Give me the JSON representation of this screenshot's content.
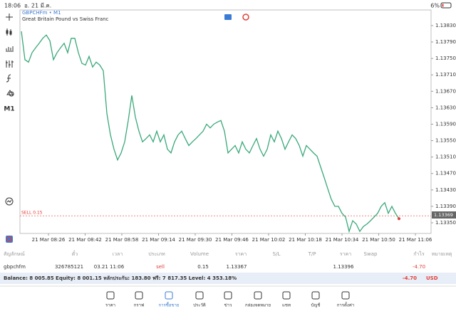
{
  "status": {
    "time": "18:06",
    "date": "อ. 21 มี.ค.",
    "battery": "6%"
  },
  "toolbar": {
    "timeframe": "M1"
  },
  "chart_data": {
    "type": "line",
    "title": "GBPCHFm • M1",
    "subtitle": "Great Britain Pound vs Swiss Franc",
    "color": "#3aa87a",
    "values": [
      1.13816,
      1.13747,
      1.13741,
      1.13764,
      1.13776,
      1.13787,
      1.13799,
      1.13807,
      1.13793,
      1.13747,
      1.13764,
      1.13776,
      1.13787,
      1.13764,
      1.13799,
      1.13799,
      1.13764,
      1.13738,
      1.13734,
      1.13755,
      1.13729,
      1.13741,
      1.13734,
      1.1372,
      1.13616,
      1.13564,
      1.13529,
      1.13503,
      1.1352,
      1.13547,
      1.13599,
      1.1366,
      1.13607,
      1.13573,
      1.13547,
      1.13555,
      1.13564,
      1.13547,
      1.13573,
      1.13547,
      1.13564,
      1.13529,
      1.1352,
      1.13547,
      1.13564,
      1.13573,
      1.13555,
      1.13538,
      1.13547,
      1.13555,
      1.13564,
      1.13573,
      1.1359,
      1.13581,
      1.1359,
      1.13595,
      1.13599,
      1.13573,
      1.1352,
      1.13529,
      1.13538,
      1.1352,
      1.13547,
      1.13529,
      1.1352,
      1.13538,
      1.13555,
      1.13529,
      1.13512,
      1.13529,
      1.13564,
      1.13547,
      1.13573,
      1.13555,
      1.13529,
      1.13547,
      1.13564,
      1.13555,
      1.13538,
      1.13512,
      1.13538,
      1.13529,
      1.1352,
      1.13512,
      1.13486,
      1.1346,
      1.13433,
      1.13407,
      1.1339,
      1.1339,
      1.13373,
      1.13364,
      1.13329,
      1.13355,
      1.13347,
      1.13329,
      1.13341,
      1.13347,
      1.13355,
      1.13364,
      1.13373,
      1.1339,
      1.13399,
      1.13373,
      1.1339,
      1.13373,
      1.1336
    ],
    "xlim": [
      -0.4,
      115
    ],
    "xticks": [
      {
        "value": 7.6,
        "label": "21 Mar 08:26"
      },
      {
        "value": 17.9,
        "label": "21 Mar 08:42"
      },
      {
        "value": 28.2,
        "label": "21 Mar 08:58"
      },
      {
        "value": 38.5,
        "label": "21 Mar 09:14"
      },
      {
        "value": 48.8,
        "label": "21 Mar 09:30"
      },
      {
        "value": 59.1,
        "label": "21 Mar 09:46"
      },
      {
        "value": 69.4,
        "label": "21 Mar 10:02"
      },
      {
        "value": 79.7,
        "label": "21 Mar 10:18"
      },
      {
        "value": 90,
        "label": "21 Mar 10:34"
      },
      {
        "value": 100.3,
        "label": "21 Mar 10:50"
      },
      {
        "value": 110.6,
        "label": "21 Mar 11:06"
      }
    ],
    "ylim": [
      1.13324,
      1.13868
    ],
    "yticks": [
      {
        "value": 1.1383,
        "label": "1.13830"
      },
      {
        "value": 1.1379,
        "label": "1.13790"
      },
      {
        "value": 1.1375,
        "label": "1.13750"
      },
      {
        "value": 1.1371,
        "label": "1.13710"
      },
      {
        "value": 1.1367,
        "label": "1.13670"
      },
      {
        "value": 1.1363,
        "label": "1.13630"
      },
      {
        "value": 1.1359,
        "label": "1.13590"
      },
      {
        "value": 1.1355,
        "label": "1.13550"
      },
      {
        "value": 1.1351,
        "label": "1.13510"
      },
      {
        "value": 1.1347,
        "label": "1.13470"
      },
      {
        "value": 1.1343,
        "label": "1.13430"
      },
      {
        "value": 1.1339,
        "label": "1.13390"
      },
      {
        "value": 1.1335,
        "label": "1.13350"
      }
    ],
    "order_line": {
      "label": "SELL 0.15",
      "value": 1.13367,
      "color": "#e0403a"
    },
    "last_price": 1.13369
  },
  "positions": {
    "headers": [
      "สัญลักษณ์",
      "ตั๋ว",
      "เวลา",
      "ประเภท",
      "Volume",
      "ราคา",
      "S/L",
      "T/P",
      "ราคา",
      "Swap",
      "กำไร",
      "หมายเหตุ"
    ],
    "row": {
      "symbol": "gbpchfm",
      "ticket": "326785121",
      "time": "03.21 11:06",
      "type": "sell",
      "volume": "0.15",
      "open_price": "1.13367",
      "current_price": "1.13396",
      "profit": "-4.70"
    }
  },
  "balance": {
    "text": "Balance: 8 005.85 Equity: 8 001.15 หลักประกัน: 183.80 ฟรี: 7 817.35 Level: 4 353.18%",
    "profit": "-4.70",
    "currency": "USD"
  },
  "tabs": {
    "labels": [
      "ราคา",
      "กราฟ",
      "การซื้อขาย",
      "ประวัติ",
      "ข่าว",
      "กล่องจดหมาย",
      "แชท",
      "บัญชี",
      "การตั้งค่า"
    ],
    "active": 2
  }
}
